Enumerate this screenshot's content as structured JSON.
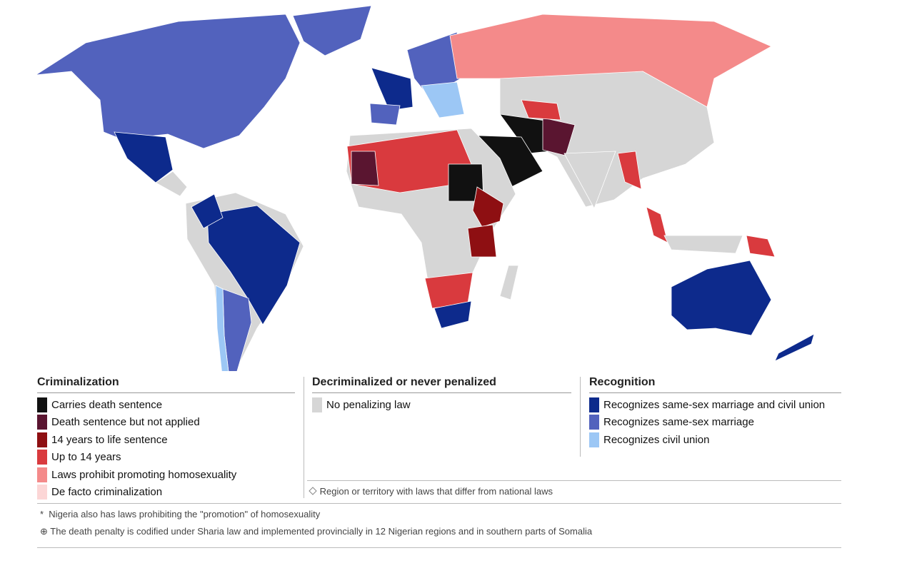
{
  "legend": {
    "groups": [
      {
        "title": "Criminalization",
        "items": [
          {
            "label": "Carries death sentence",
            "color": "#111111"
          },
          {
            "label": "Death sentence but not applied",
            "color": "#5a1530"
          },
          {
            "label": "14 years to life sentence",
            "color": "#8e0f12"
          },
          {
            "label": "Up to 14 years",
            "color": "#d93a3e"
          },
          {
            "label": "Laws prohibit promoting homosexuality",
            "color": "#f48a8a"
          },
          {
            "label": "De facto criminalization",
            "color": "#fcd6d6"
          }
        ]
      },
      {
        "title": "Decriminalized or never penalized",
        "items": [
          {
            "label": "No penalizing law",
            "color": "#d6d6d6"
          }
        ]
      },
      {
        "title": "Recognition",
        "items": [
          {
            "label": "Recognizes same-sex marriage and civil union",
            "color": "#0d2a8c"
          },
          {
            "label": "Recognizes same-sex marriage",
            "color": "#5262bd"
          },
          {
            "label": "Recognizes civil union",
            "color": "#9cc7f5"
          }
        ]
      }
    ]
  },
  "region_note": "Region or territory with laws that differ from national laws",
  "footnotes": [
    {
      "marker": "*",
      "text": "Nigeria also has laws prohibiting the \"promotion\" of homosexuality"
    },
    {
      "marker": "⊕",
      "text": "The death penalty is codified under Sharia law and implemented provincially in 12 Nigerian regions and in southern parts of Somalia"
    }
  ]
}
